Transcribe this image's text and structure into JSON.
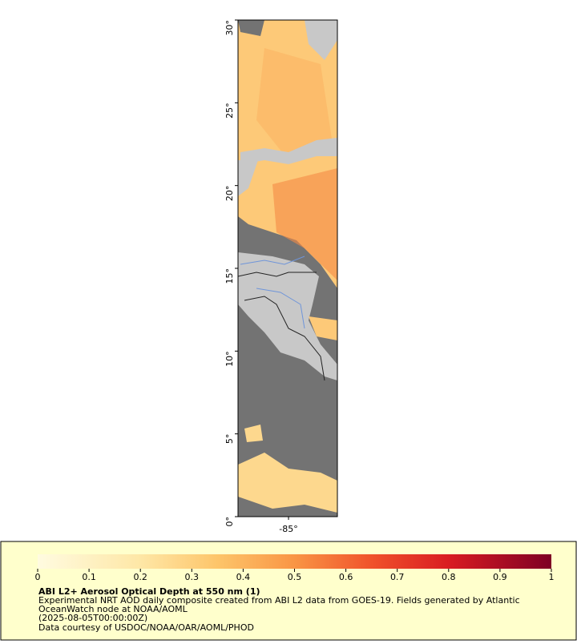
{
  "map": {
    "xlim": [
      -88.05,
      -82.05
    ],
    "ylim": [
      0,
      30
    ],
    "yticks": [
      {
        "value": 0,
        "label": "0°"
      },
      {
        "value": 5,
        "label": "5°"
      },
      {
        "value": 10,
        "label": "10°"
      },
      {
        "value": 15,
        "label": "15°"
      },
      {
        "value": 20,
        "label": "20°"
      },
      {
        "value": 25,
        "label": "25°"
      },
      {
        "value": 30,
        "label": "30°"
      }
    ],
    "xticks": [
      {
        "value": -85,
        "label": "-85°"
      }
    ]
  },
  "colorbar": {
    "lim": [
      0,
      1
    ],
    "ticks": [
      0,
      0.1,
      0.2,
      0.3,
      0.4,
      0.5,
      0.6,
      0.7,
      0.8,
      0.9,
      1
    ]
  },
  "legend": {
    "title": "ABI L2+ Aerosol Optical Depth at 550 nm (1)",
    "lines": [
      "Experimental NRT AOD daily composite created from ABI L2 data from GOES-19. Fields generated by Atlantic",
      "OceanWatch node at NOAA/AOML",
      "(2025-08-05T00:00:00Z)",
      "Data courtesy of USDOC/NOAA/OAR/AOML/PHOD"
    ]
  }
}
